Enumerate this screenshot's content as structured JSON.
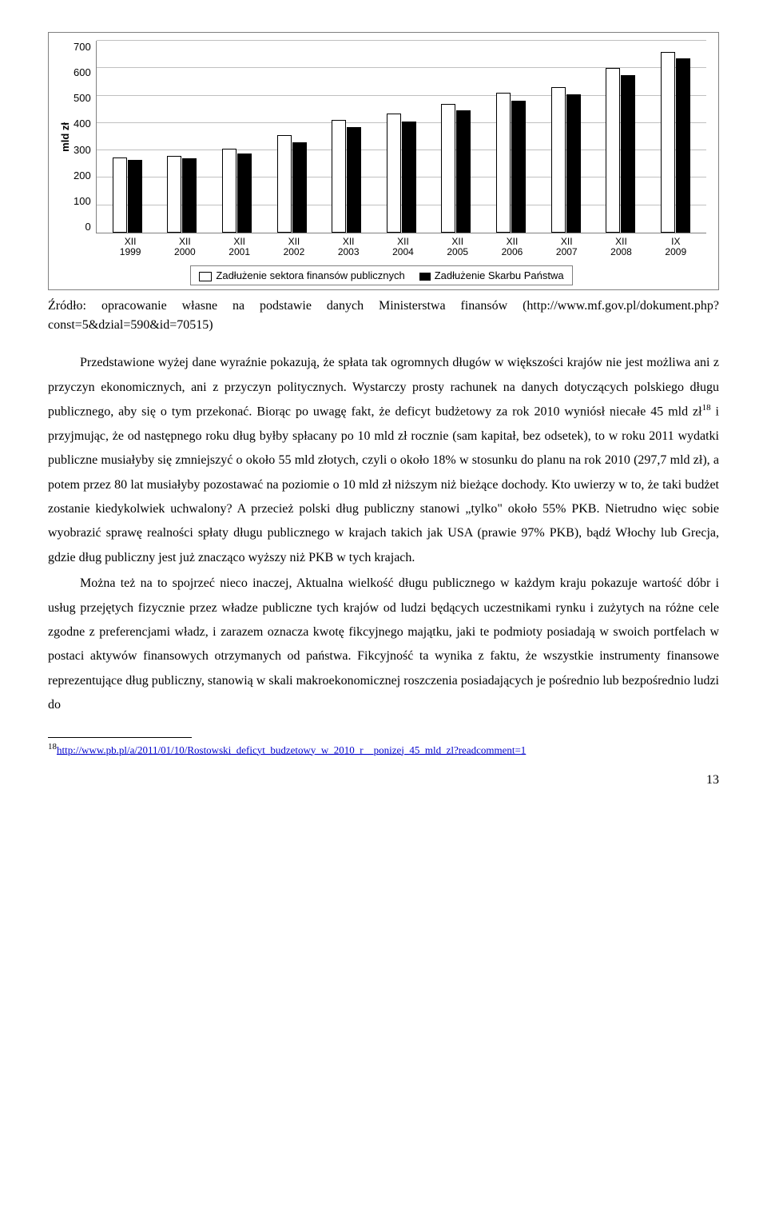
{
  "chart": {
    "type": "bar",
    "ylabel": "mld zł",
    "ymax": 700,
    "yticks": [
      700,
      600,
      500,
      400,
      300,
      200,
      100,
      0
    ],
    "categories": [
      "XII 1999",
      "XII 2000",
      "XII 2001",
      "XII 2002",
      "XII 2003",
      "XII 2004",
      "XII 2005",
      "XII 2006",
      "XII 2007",
      "XII 2008",
      "IX 2009"
    ],
    "series": [
      {
        "name": "Zadłużenie sektora finansów publicznych",
        "color": "#ffffff",
        "border": "#000000",
        "values": [
          275,
          280,
          305,
          355,
          410,
          435,
          470,
          510,
          530,
          600,
          660
        ]
      },
      {
        "name": "Zadłużenie Skarbu Państwa",
        "color": "#000000",
        "values": [
          265,
          270,
          290,
          330,
          385,
          405,
          445,
          480,
          505,
          575,
          635
        ]
      }
    ],
    "legend": [
      "Zadłużenie sektora finansów publicznych",
      "Zadłużenie Skarbu Państwa"
    ],
    "grid_color": "#c0c0c0",
    "background_color": "#ffffff"
  },
  "source": {
    "prefix": "Źródło: opracowanie własne na podstawie danych Ministerstwa finansów (http://www.mf.gov.pl/dokument.php?const=5&dzial=590&id=70515)"
  },
  "paragraphs": {
    "p1": "Przedstawione wyżej dane wyraźnie pokazują, że spłata tak ogromnych długów w większości krajów nie jest możliwa ani z przyczyn ekonomicznych, ani z przyczyn politycznych. Wystarczy prosty rachunek na danych dotyczących polskiego długu publicznego, aby się o tym przekonać. Biorąc po uwagę fakt, że deficyt budżetowy za rok 2010 wyniósł niecałe 45 mld zł",
    "p1_sup": "18",
    "p1_cont": " i przyjmując, że od następnego roku dług byłby spłacany po 10 mld zł rocznie (sam kapitał, bez odsetek), to w roku 2011 wydatki publiczne musiałyby się zmniejszyć o około 55 mld złotych, czyli o około 18% w stosunku do planu na rok 2010 (297,7 mld zł), a potem przez 80 lat musiałyby pozostawać na poziomie o 10 mld zł niższym niż bieżące dochody. Kto uwierzy w to, że taki budżet zostanie kiedykolwiek uchwalony? A przecież polski dług publiczny stanowi „tylko\" około 55% PKB. Nietrudno więc sobie wyobrazić sprawę realności spłaty długu publicznego w krajach takich jak USA (prawie 97% PKB), bądź Włochy lub Grecja, gdzie dług publiczny jest już znacząco wyższy niż PKB w tych krajach.",
    "p2": "Można też na to spojrzeć nieco inaczej, Aktualna wielkość długu publicznego w każdym kraju pokazuje wartość dóbr i usług przejętych fizycznie przez władze publiczne tych krajów od ludzi będących uczestnikami rynku i zużytych na różne cele zgodne z preferencjami władz, i zarazem oznacza kwotę fikcyjnego majątku, jaki te podmioty posiadają w swoich portfelach w postaci aktywów finansowych otrzymanych od państwa. Fikcyjność ta wynika z faktu, że wszystkie instrumenty finansowe reprezentujące dług publiczny, stanowią w skali makroekonomicznej roszczenia posiadających je pośrednio lub bezpośrednio ludzi do"
  },
  "footnote": {
    "num": "18",
    "link_text": "http://www.pb.pl/a/2011/01/10/Rostowski_deficyt_budzetowy_w_2010_r__ponizej_45_mld_zl?readcomment=1"
  },
  "pagenum": "13"
}
